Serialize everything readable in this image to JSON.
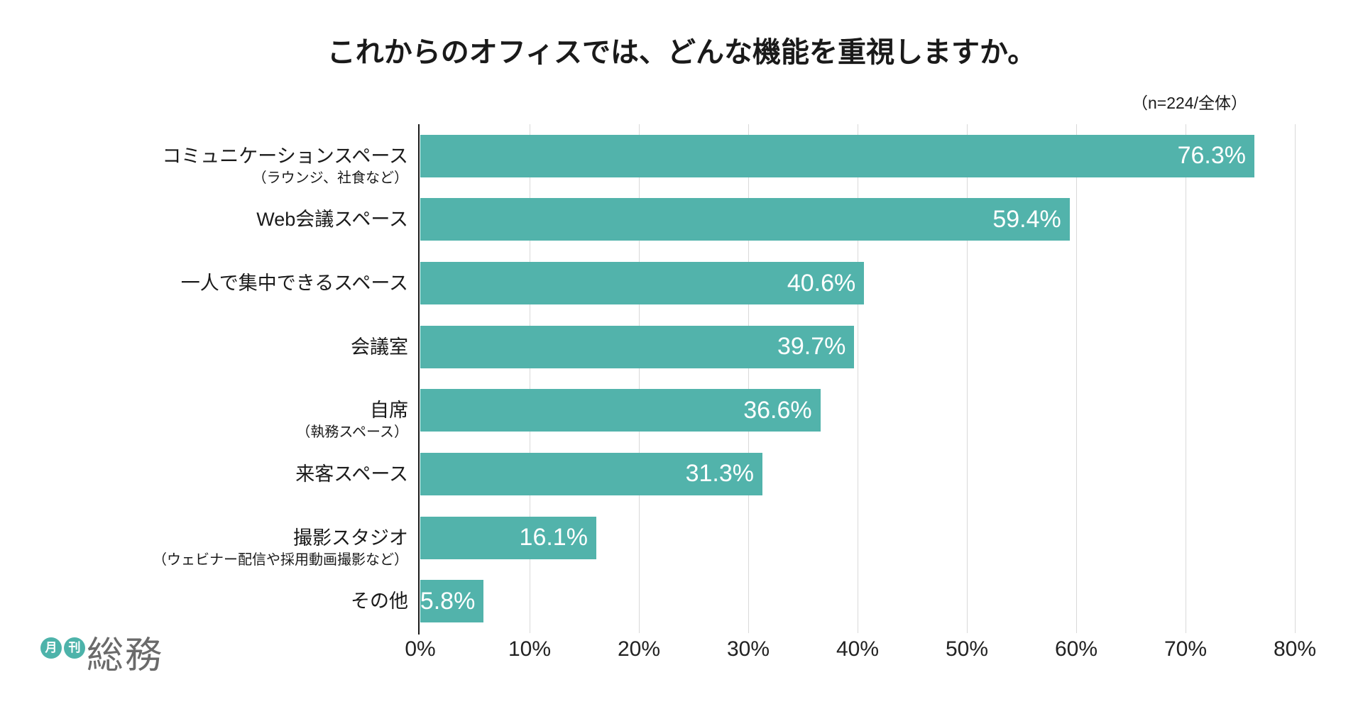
{
  "title": "これからのオフィスでは、どんな機能を重視しますか。",
  "sample_note": "（n=224/全体）",
  "logo": {
    "badge_month": "月",
    "badge_kan": "刊",
    "name": "総務"
  },
  "colors": {
    "page_bg": "#ffffff",
    "bar": "#52b3ab",
    "grid": "#d9d9d9",
    "axis": "#1a1a1a",
    "text": "#1a1a1a",
    "tick_text": "#222222",
    "value_text": "#ffffff",
    "logo_teal": "#4db3aa",
    "logo_text": "#6a6a6a"
  },
  "chart_data": {
    "type": "bar",
    "orientation": "horizontal",
    "title": "これからのオフィスでは、どんな機能を重視しますか。",
    "sample_size_note": "（n=224/全体）",
    "categories": [
      {
        "label": "コミュニケーションスペース",
        "sublabel": "（ラウンジ、社食など）"
      },
      {
        "label": "Web会議スペース",
        "sublabel": ""
      },
      {
        "label": "一人で集中できるスペース",
        "sublabel": ""
      },
      {
        "label": "会議室",
        "sublabel": ""
      },
      {
        "label": "自席",
        "sublabel": "（執務スペース）"
      },
      {
        "label": "来客スペース",
        "sublabel": ""
      },
      {
        "label": "撮影スタジオ",
        "sublabel": "（ウェビナー配信や採用動画撮影など）"
      },
      {
        "label": "その他",
        "sublabel": ""
      }
    ],
    "values": [
      76.3,
      59.4,
      40.6,
      39.7,
      36.6,
      31.3,
      16.1,
      5.8
    ],
    "value_labels": [
      "76.3%",
      "59.4%",
      "40.6%",
      "39.7%",
      "36.6%",
      "31.3%",
      "16.1%",
      "5.8%"
    ],
    "xlabel": "",
    "ylabel": "",
    "xlim": [
      0,
      80
    ],
    "x_tick_values": [
      0,
      10,
      20,
      30,
      40,
      50,
      60,
      70,
      80
    ],
    "x_ticks": [
      "0%",
      "10%",
      "20%",
      "30%",
      "40%",
      "50%",
      "60%",
      "70%",
      "80%"
    ],
    "grid": true,
    "legend": false,
    "value_label_position": "inside-end"
  }
}
